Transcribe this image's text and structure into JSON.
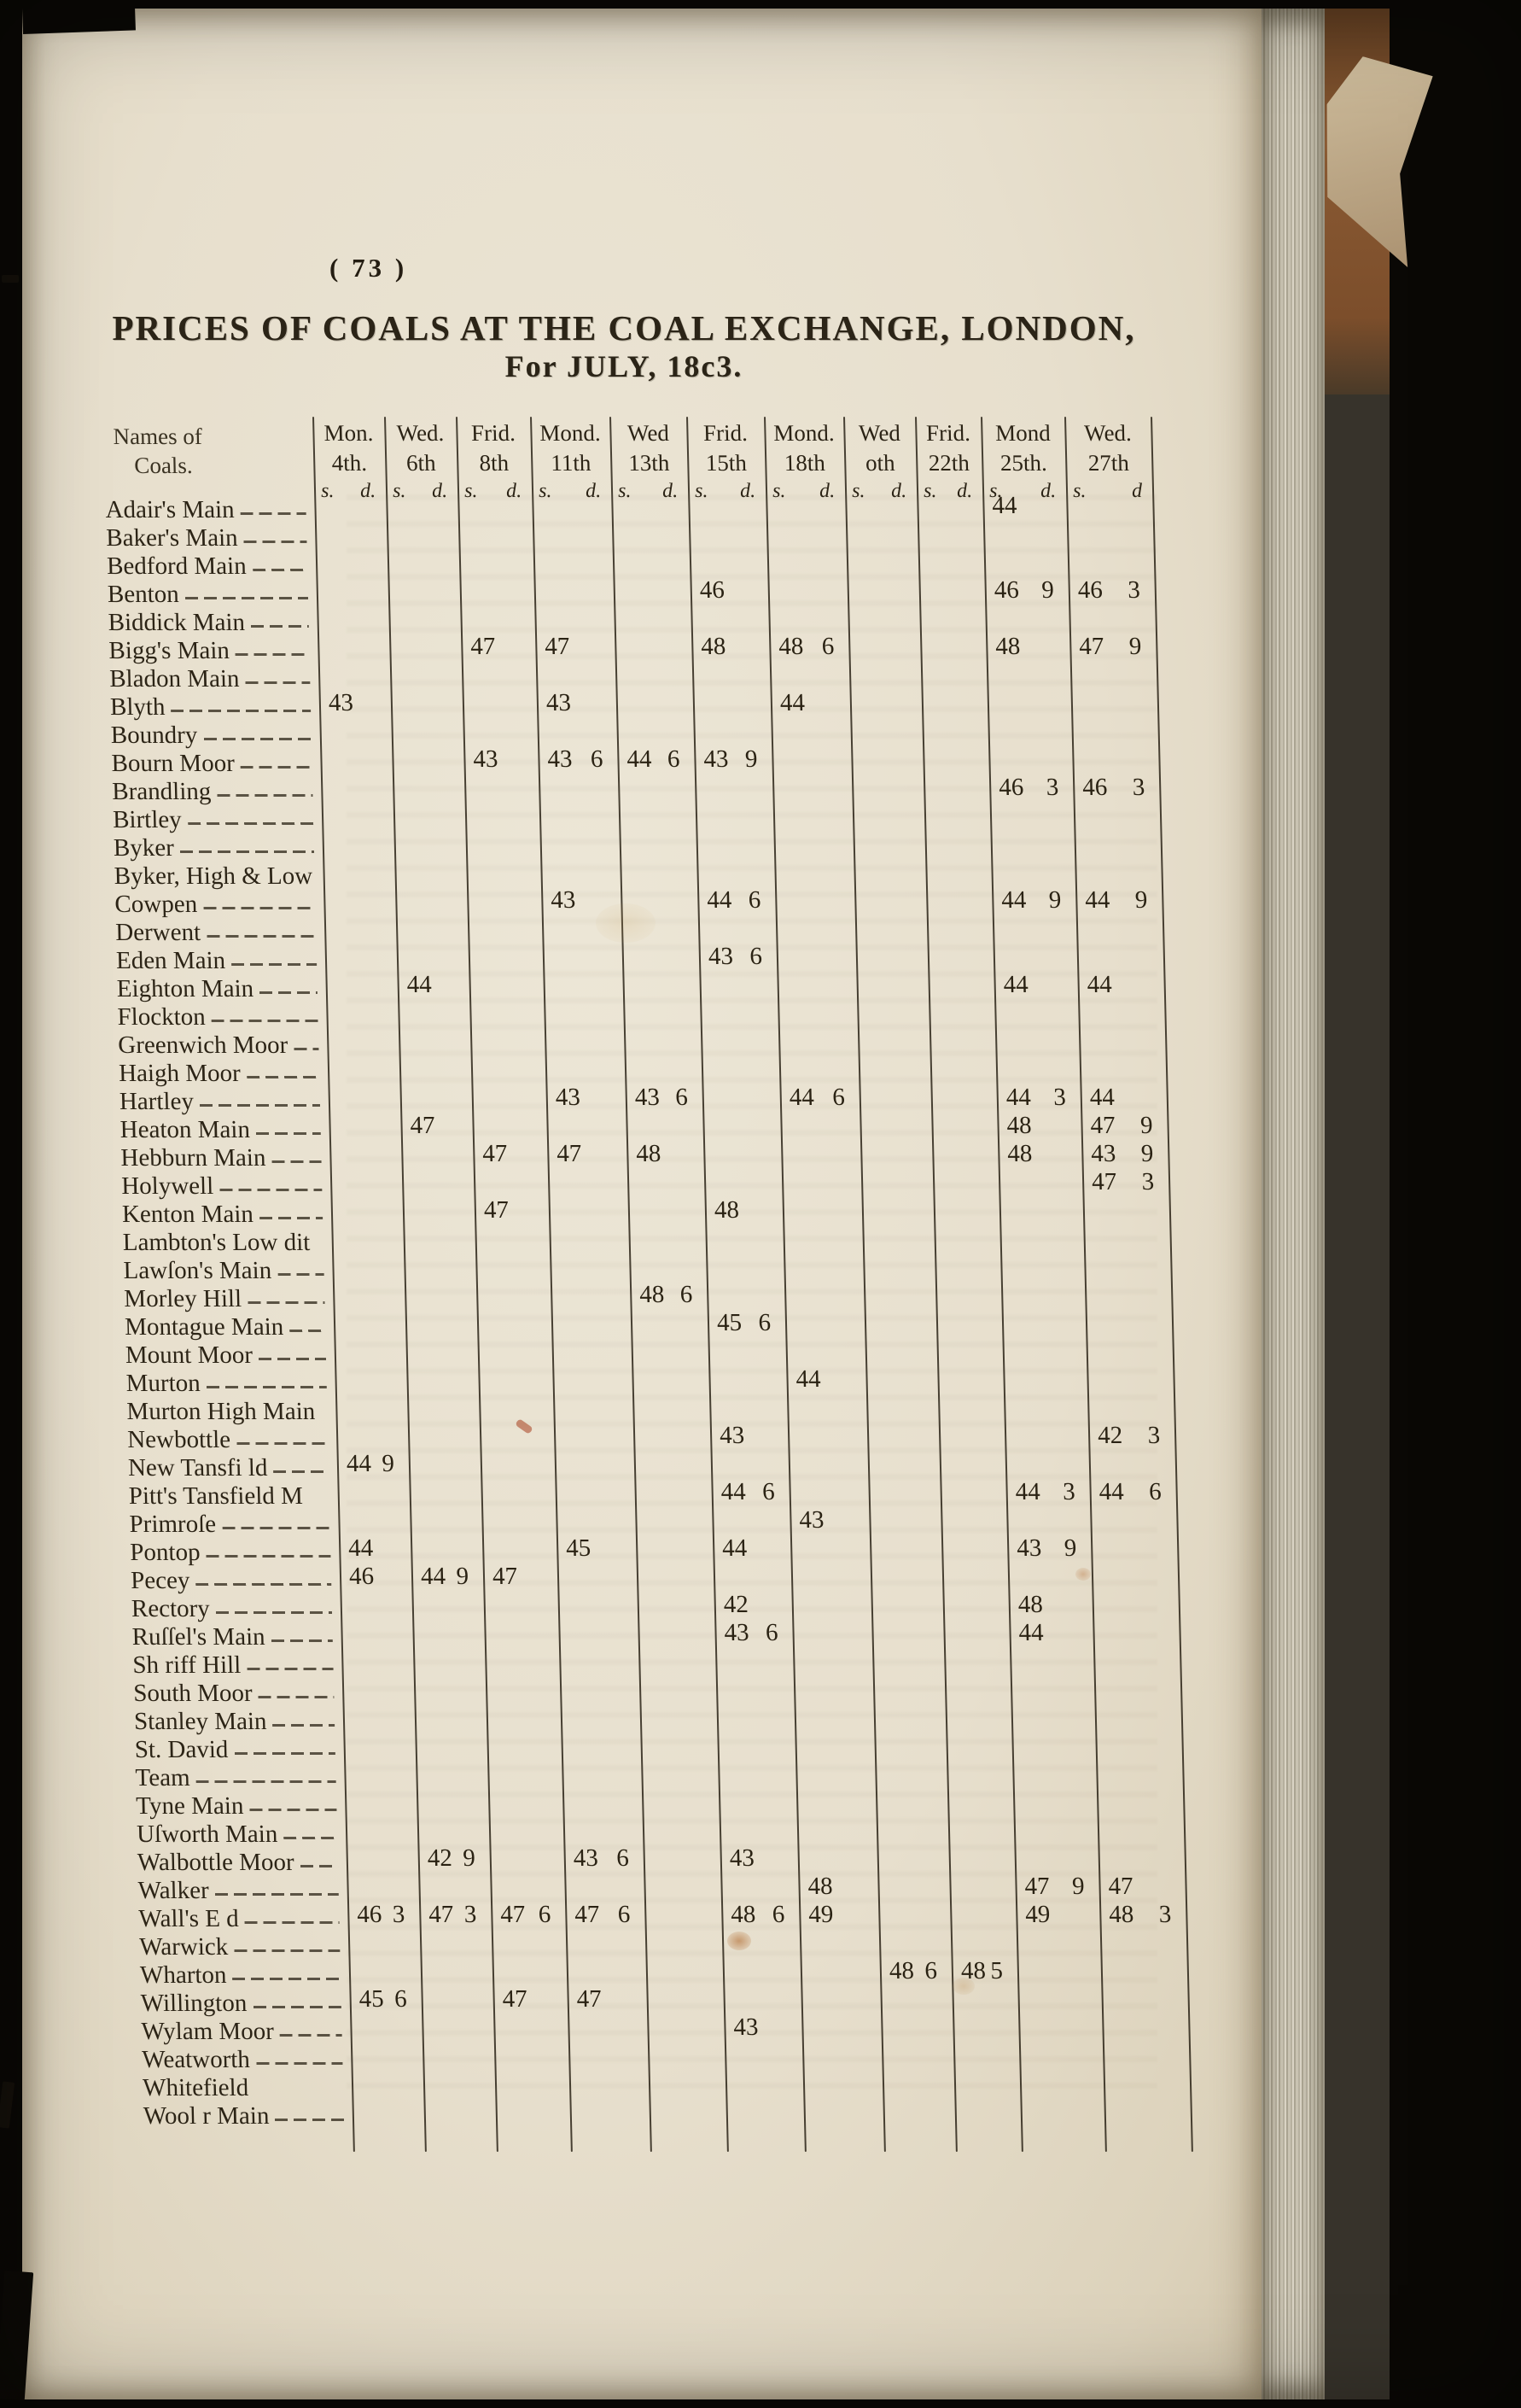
{
  "page": {
    "number_display": "( 73 )",
    "title_line1": "PRICES OF COALS AT THE COAL EXCHANGE, LONDON,",
    "title_line2": "For JULY, 18c3."
  },
  "table": {
    "names_header_line1": "Names of",
    "names_header_line2": "Coals.",
    "columns": [
      {
        "day": "Mon.",
        "date": "4th.",
        "s": "s.",
        "d": "d."
      },
      {
        "day": "Wed.",
        "date": "6th",
        "s": "s.",
        "d": "d."
      },
      {
        "day": "Frid.",
        "date": "8th",
        "s": "s.",
        "d": "d."
      },
      {
        "day": "Mond.",
        "date": "11th",
        "s": "s.",
        "d": "d."
      },
      {
        "day": "Wed",
        "date": "13th",
        "s": "s.",
        "d": "d."
      },
      {
        "day": "Frid.",
        "date": "15th",
        "s": "s.",
        "d": "d."
      },
      {
        "day": "Mond.",
        "date": "18th",
        "s": "s.",
        "d": "d."
      },
      {
        "day": "Wed",
        "date": "oth",
        "s": "s.",
        "d": "d."
      },
      {
        "day": "Frid.",
        "date": "22th",
        "s": "s.",
        "d": "d."
      },
      {
        "day": "Mond",
        "date": "25th.",
        "s": "s.",
        "d": "d."
      },
      {
        "day": "Wed.",
        "date": "27th",
        "s": "s.",
        "d": "d"
      }
    ],
    "rows": [
      {
        "name": "Adair's Main",
        "dash": true,
        "cells": {
          "9": "44"
        }
      },
      {
        "name": "Baker's Main",
        "dash": true,
        "cells": {}
      },
      {
        "name": "Bedford Main",
        "dash": true,
        "cells": {}
      },
      {
        "name": "Benton",
        "dash": true,
        "cells": {
          "5": "46",
          "9": "46 9",
          "10": "46 3"
        }
      },
      {
        "name": "Biddick Main",
        "dash": true,
        "cells": {}
      },
      {
        "name": "Bigg's Main",
        "dash": true,
        "cells": {
          "2": "47",
          "3": "47",
          "5": "48",
          "6": "48 6",
          "9": "48",
          "10": "47 9"
        }
      },
      {
        "name": "Bladon Main",
        "dash": true,
        "cells": {}
      },
      {
        "name": "Blyth",
        "dash": true,
        "cells": {
          "0": "43",
          "3": "43",
          "6": "44"
        }
      },
      {
        "name": "Boundry",
        "dash": true,
        "cells": {}
      },
      {
        "name": "Bourn Moor",
        "dash": true,
        "cells": {
          "2": "43",
          "3": "43 6",
          "4": "44 6",
          "5": "43 9"
        }
      },
      {
        "name": "Brandling",
        "dash": true,
        "cells": {
          "9": "46 3",
          "10": "46 3"
        }
      },
      {
        "name": "Birtley",
        "dash": true,
        "cells": {}
      },
      {
        "name": "Byker",
        "dash": true,
        "cells": {}
      },
      {
        "name": "Byker, High & Low",
        "dash": false,
        "cells": {}
      },
      {
        "name": "Cowpen",
        "dash": true,
        "cells": {
          "3": "43",
          "5": "44 6",
          "9": "44 9",
          "10": "44 9"
        }
      },
      {
        "name": "Derwent",
        "dash": true,
        "cells": {}
      },
      {
        "name": "Eden Main",
        "dash": true,
        "cells": {
          "5": "43 6"
        }
      },
      {
        "name": "Eighton Main",
        "dash": true,
        "cells": {
          "1": "44",
          "9": "44",
          "10": "44"
        }
      },
      {
        "name": "Flockton",
        "dash": true,
        "cells": {}
      },
      {
        "name": "Greenwich Moor",
        "dash": true,
        "cells": {}
      },
      {
        "name": "Haigh Moor",
        "dash": true,
        "cells": {}
      },
      {
        "name": "Hartley",
        "dash": true,
        "cells": {
          "3": "43",
          "4": "43 6",
          "6": "44 6",
          "9": "44 3",
          "10": "44"
        }
      },
      {
        "name": "Heaton Main",
        "dash": true,
        "cells": {
          "1": "47",
          "9": "48",
          "10": "47 9"
        }
      },
      {
        "name": "Hebburn Main",
        "dash": true,
        "cells": {
          "2": "47",
          "3": "47",
          "4": "48",
          "9": "48",
          "10": "43 9"
        }
      },
      {
        "name": "Holywell",
        "dash": true,
        "cells": {
          "10": "47 3"
        }
      },
      {
        "name": "Kenton Main",
        "dash": true,
        "cells": {
          "2": "47",
          "5": "48"
        }
      },
      {
        "name": "Lambton's Low dit",
        "dash": false,
        "cells": {}
      },
      {
        "name": "Lawſon's Main",
        "dash": true,
        "cells": {}
      },
      {
        "name": "Morley Hill",
        "dash": true,
        "cells": {
          "4": "48 6"
        }
      },
      {
        "name": "Montague Main",
        "dash": true,
        "cells": {
          "5": "45 6"
        }
      },
      {
        "name": "Mount Moor",
        "dash": true,
        "cells": {}
      },
      {
        "name": "Murton",
        "dash": true,
        "cells": {
          "6": "44"
        }
      },
      {
        "name": "Murton High Main",
        "dash": false,
        "cells": {}
      },
      {
        "name": "Newbottle",
        "dash": true,
        "cells": {
          "5": "43",
          "10": "42 3"
        }
      },
      {
        "name": "New Tansfi ld",
        "dash": true,
        "cells": {
          "0": "44 9"
        }
      },
      {
        "name": "Pitt's Tansfield M",
        "dash": false,
        "cells": {
          "5": "44 6",
          "9": "44 3",
          "10": "44 6"
        }
      },
      {
        "name": "Primroſe",
        "dash": true,
        "cells": {
          "6": "43"
        }
      },
      {
        "name": "Pontop",
        "dash": true,
        "cells": {
          "0": "44",
          "3": "45",
          "5": "44",
          "9": "43 9"
        }
      },
      {
        "name": "Pecey",
        "dash": true,
        "cells": {
          "0": "46",
          "1": "44 9",
          "2": "47"
        }
      },
      {
        "name": "Rectory",
        "dash": true,
        "cells": {
          "5": "42",
          "9": "48"
        }
      },
      {
        "name": "Ruſſel's Main",
        "dash": true,
        "cells": {
          "5": "43 6",
          "9": "44"
        }
      },
      {
        "name": "Sh riff Hill",
        "dash": true,
        "cells": {}
      },
      {
        "name": "South Moor",
        "dash": true,
        "cells": {}
      },
      {
        "name": "Stanley Main",
        "dash": true,
        "cells": {}
      },
      {
        "name": "St. David",
        "dash": true,
        "cells": {}
      },
      {
        "name": "Team",
        "dash": true,
        "cells": {}
      },
      {
        "name": "Tyne Main",
        "dash": true,
        "cells": {}
      },
      {
        "name": "Uſworth Main",
        "dash": true,
        "cells": {}
      },
      {
        "name": "Walbottle Moor",
        "dash": true,
        "cells": {
          "1": "42 9",
          "3": "43 6",
          "5": "43"
        }
      },
      {
        "name": "Walker",
        "dash": true,
        "cells": {
          "6": "48",
          "9": "47 9",
          "10": "47"
        }
      },
      {
        "name": "Wall's E d",
        "dash": true,
        "cells": {
          "0": "46 3",
          "1": "47 3",
          "2": "47 6",
          "3": "47 6",
          "5": "48 6",
          "6": "49",
          "9": "49",
          "10": "48 3"
        }
      },
      {
        "name": "Warwick",
        "dash": true,
        "cells": {}
      },
      {
        "name": "Wharton",
        "dash": true,
        "cells": {
          "7": "48 6",
          "8": "48 5"
        }
      },
      {
        "name": "Willington",
        "dash": true,
        "cells": {
          "0": "45 6",
          "2": "47",
          "3": "47"
        }
      },
      {
        "name": "Wylam Moor",
        "dash": true,
        "cells": {
          "5": "43"
        }
      },
      {
        "name": "Weatworth",
        "dash": true,
        "cells": {}
      },
      {
        "name": "Whitefield",
        "dash": false,
        "cells": {}
      },
      {
        "name": "Wool r Main",
        "dash": true,
        "cells": {}
      }
    ]
  }
}
